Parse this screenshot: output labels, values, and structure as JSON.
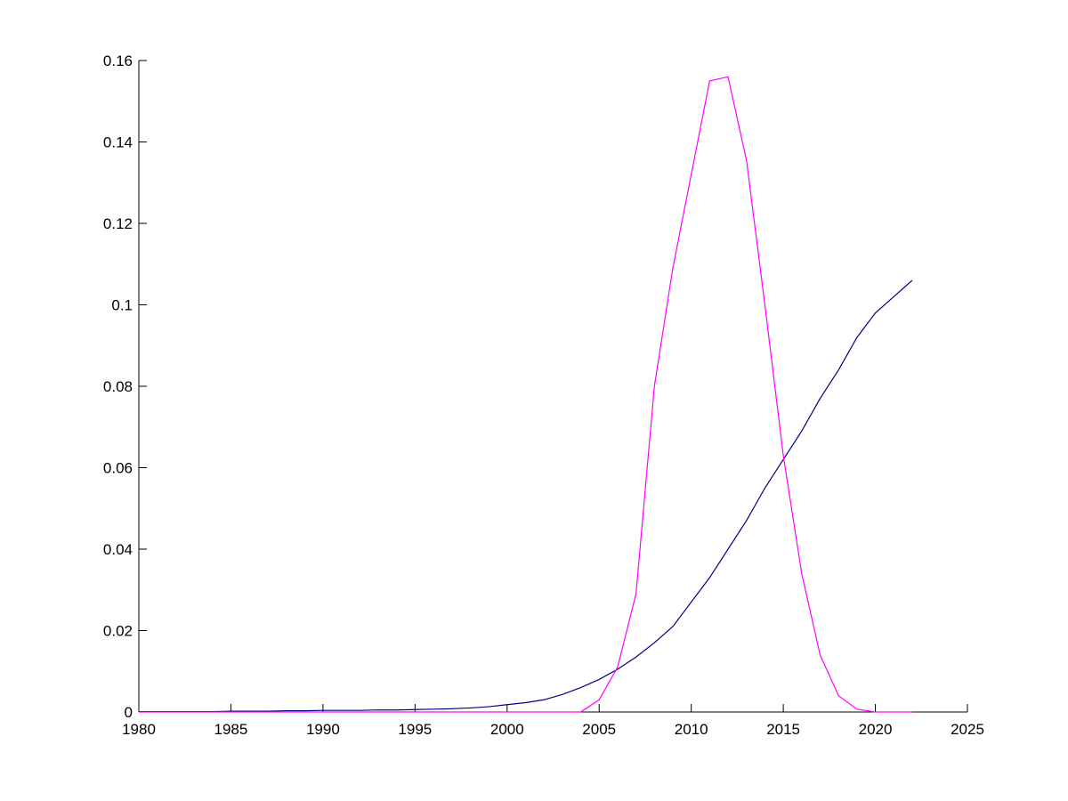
{
  "chart_data": {
    "type": "line",
    "x": [
      1980,
      1981,
      1982,
      1983,
      1984,
      1985,
      1986,
      1987,
      1988,
      1989,
      1990,
      1991,
      1992,
      1993,
      1994,
      1995,
      1996,
      1997,
      1998,
      1999,
      2000,
      2001,
      2002,
      2003,
      2004,
      2005,
      2006,
      2007,
      2008,
      2009,
      2010,
      2011,
      2012,
      2013,
      2014,
      2015,
      2016,
      2017,
      2018,
      2019,
      2020,
      2021,
      2022
    ],
    "series": [
      {
        "color": "#00008b",
        "values": [
          0.0001,
          0.0001,
          0.0001,
          0.0001,
          0.0001,
          0.0002,
          0.0002,
          0.0002,
          0.0003,
          0.0003,
          0.0004,
          0.0004,
          0.0004,
          0.0005,
          0.0005,
          0.0006,
          0.0007,
          0.0008,
          0.001,
          0.0013,
          0.0018,
          0.0023,
          0.003,
          0.0043,
          0.006,
          0.008,
          0.0105,
          0.0135,
          0.017,
          0.021,
          0.027,
          0.033,
          0.04,
          0.047,
          0.055,
          0.062,
          0.069,
          0.077,
          0.084,
          0.092,
          0.098,
          0.102,
          0.106
        ]
      },
      {
        "color": "#ff00ff",
        "values": [
          0,
          0,
          0,
          0,
          0,
          0,
          0,
          0,
          0,
          0,
          0,
          0,
          0,
          0,
          0,
          0,
          0,
          0,
          0,
          0,
          0,
          0,
          0,
          0,
          0,
          0.003,
          0.011,
          0.029,
          0.08,
          0.109,
          0.132,
          0.155,
          0.156,
          0.1355,
          0.1,
          0.063,
          0.034,
          0.014,
          0.004,
          0.0007,
          0,
          0,
          0
        ]
      }
    ],
    "xlim": [
      1980,
      2025
    ],
    "xticks": [
      1980,
      1985,
      1990,
      1995,
      2000,
      2005,
      2010,
      2015,
      2020,
      2025
    ],
    "ylim": [
      0,
      0.16
    ],
    "yticks": [
      0,
      0.02,
      0.04,
      0.06,
      0.08,
      0.1,
      0.12,
      0.14,
      0.16
    ]
  }
}
